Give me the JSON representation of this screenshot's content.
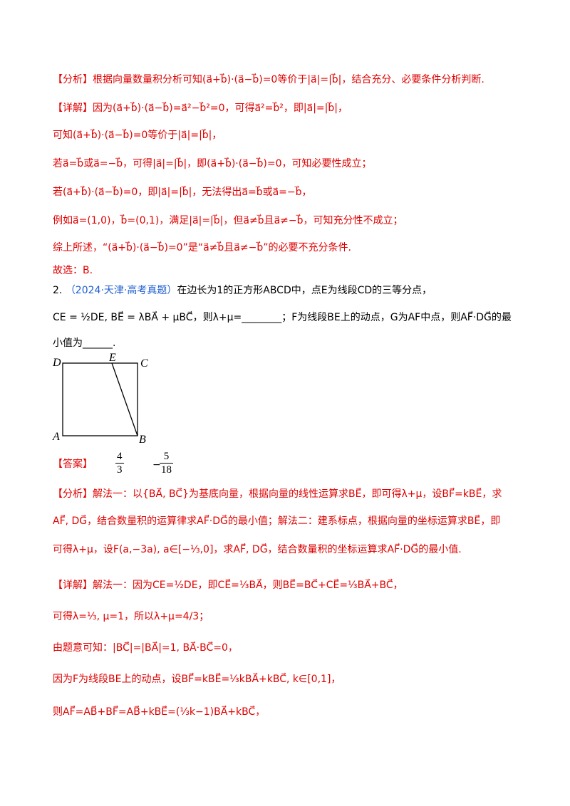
{
  "solution1": {
    "analysis": "【分析】根据向量数量积分析可知(a⃗+b⃗)·(a⃗−b⃗)=0等价于|a⃗|=|b⃗|，结合充分、必要条件分析判断.",
    "detail_lines": [
      "【详解】因为(a⃗+b⃗)·(a⃗−b⃗)=a⃗²−b⃗²=0，可得a⃗²=b⃗²，即|a⃗|=|b⃗|，",
      "可知(a⃗+b⃗)·(a⃗−b⃗)=0等价于|a⃗|=|b⃗|，",
      "若a⃗=b⃗或a⃗=−b⃗，可得|a⃗|=|b⃗|，即(a⃗+b⃗)·(a⃗−b⃗)=0，可知必要性成立；",
      "若(a⃗+b⃗)·(a⃗−b⃗)=0，即|a⃗|=|b⃗|，无法得出a⃗=b⃗或a⃗=−b⃗，",
      "例如a⃗=(1,0)，b⃗=(0,1)，满足|a⃗|=|b⃗|，但a⃗≠b⃗且a⃗≠−b⃗，可知充分性不成立；",
      "综上所述，“(a⃗+b⃗)·(a⃗−b⃗)=0”是“a⃗≠b⃗且a⃗≠−b⃗”的必要不充分条件."
    ],
    "choice": "故选：B."
  },
  "problem2": {
    "number": "2.",
    "source": "（2024·天津·高考真题）",
    "stem_lines": [
      "在边长为1的正方形ABCD中，点E为线段CD的三等分点，",
      "CE = ½DE, BE⃗ = λBA⃗ + μBC⃗，则λ+μ=________；F为线段BE上的动点，G为AF中点，则AF⃗·DG⃗的最",
      "小值为______."
    ],
    "figure": {
      "labels": [
        "D",
        "E",
        "C",
        "A",
        "B"
      ]
    },
    "answer": {
      "label": "【答案】",
      "first": {
        "numerator": "4",
        "denominator": "3"
      },
      "second": {
        "sign": "−",
        "numerator": "5",
        "denominator": "18"
      }
    },
    "analysis_lines": [
      "【分析】解法一：以{BA⃗, BC⃗}为基底向量，根据向量的线性运算求BE⃗，即可得λ+μ，设BF⃗=kBE⃗，求",
      "AF⃗, DG⃗，结合数量积的运算律求AF⃗·DG⃗的最小值；解法二：建系标点，根据向量的坐标运算求BE⃗，即",
      "可得λ+μ，设F(a,−3a), a∈[−⅓,0]，求AF⃗, DG⃗，结合数量积的坐标运算求AF⃗·DG⃗的最小值."
    ],
    "detail_lines": [
      "【详解】解法一：因为CE=½DE，即CE⃗=⅓BA⃗，则BE⃗=BC⃗+CE⃗=⅓BA⃗+BC⃗，",
      "可得λ=⅓, μ=1，所以λ+μ=4/3；",
      "由题意可知：|BC⃗|=|BA⃗|=1, BA⃗·BC⃗=0，",
      "因为F为线段BE上的动点，设BF⃗=kBE⃗=⅓kBA⃗+kBC⃗, k∈[0,1]，",
      "则AF⃗=AB⃗+BF⃗=AB⃗+kBE⃗=(⅓k−1)BA⃗+kBC⃗，"
    ]
  }
}
